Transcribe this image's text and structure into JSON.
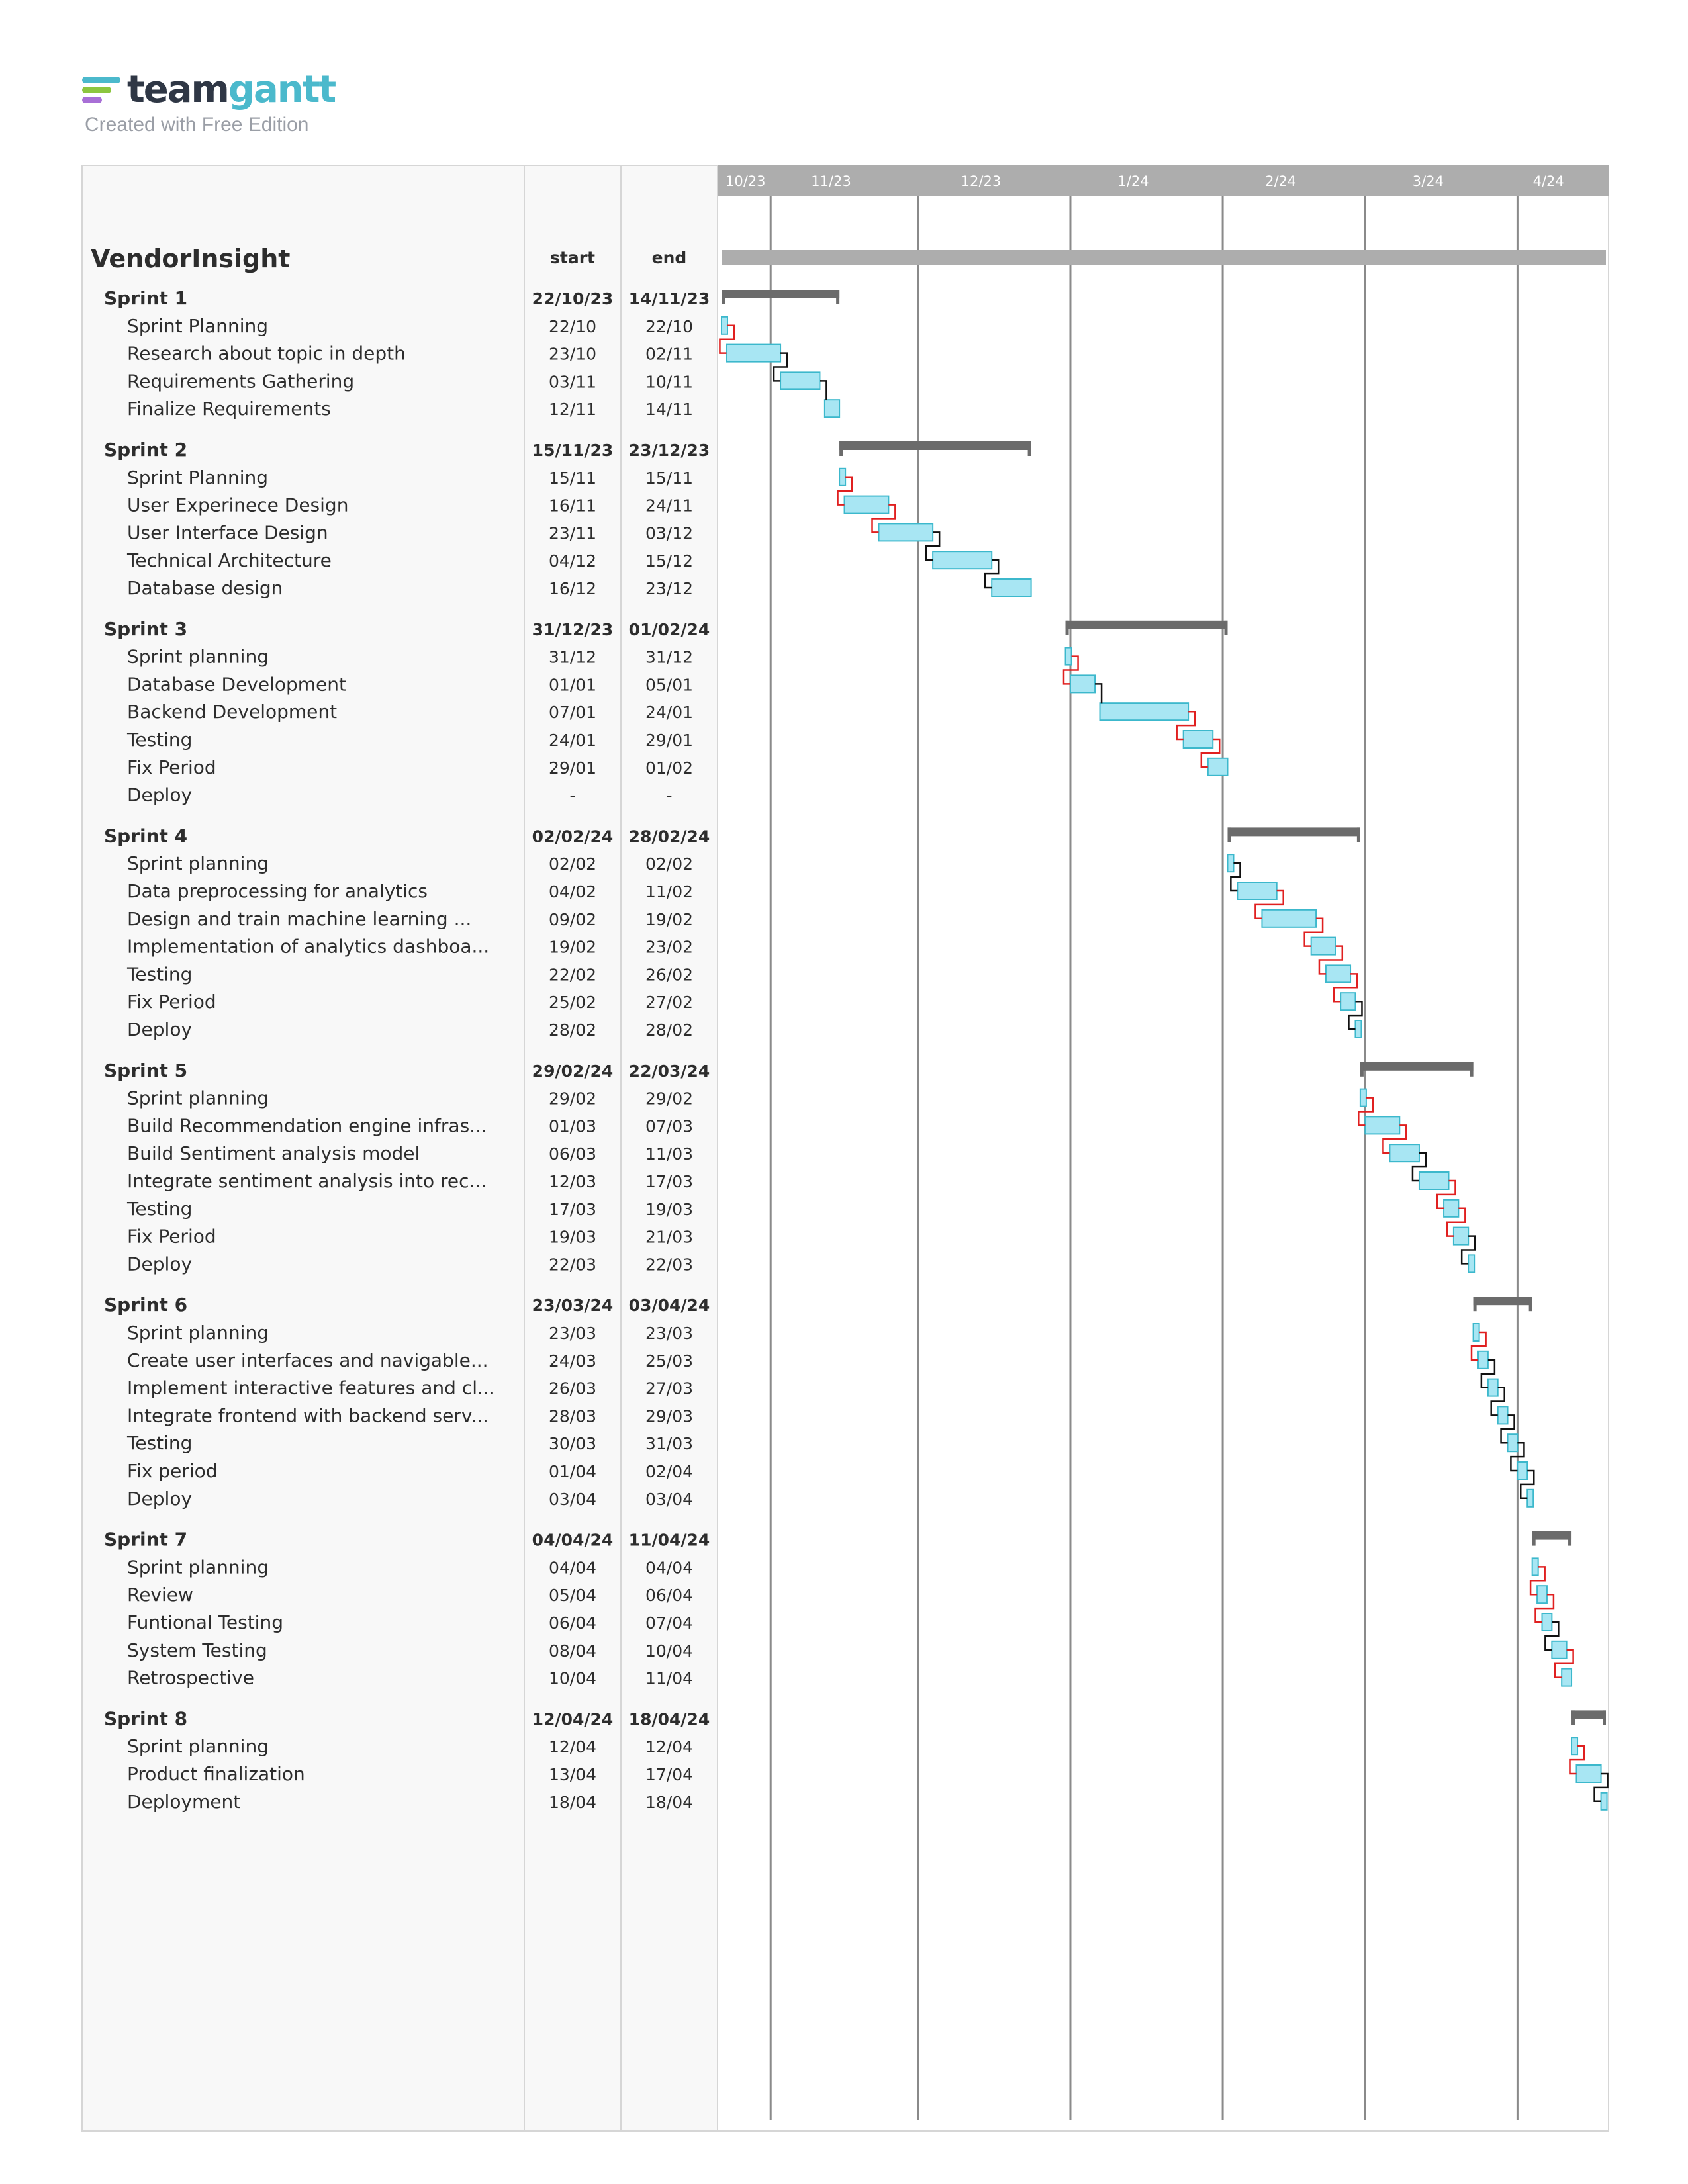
{
  "brand": {
    "name_part1": "team",
    "name_part2": "gantt",
    "subtitle": "Created with Free Edition",
    "mark_colors": [
      "#4bb9cc",
      "#8cc63f",
      "#a86fd6"
    ]
  },
  "colors": {
    "task_fill": "#a8e6f3",
    "task_stroke": "#3cb8cc",
    "group_bar": "#6b6b6b",
    "project_bar": "#adadad",
    "timeline_header": "#adadad",
    "dependency": "#111111",
    "dependency_conflict": "#e02020",
    "table_bg": "#f8f8f8"
  },
  "table": {
    "start_label": "start",
    "end_label": "end"
  },
  "chart_data": {
    "type": "gantt",
    "title": "VendorInsight",
    "x_range": [
      "2023-10-22",
      "2024-04-18"
    ],
    "months": [
      {
        "label": "10/23",
        "date": "2023-10-22"
      },
      {
        "label": "11/23",
        "date": "2023-11-01"
      },
      {
        "label": "12/23",
        "date": "2023-12-01"
      },
      {
        "label": "1/24",
        "date": "2024-01-01"
      },
      {
        "label": "2/24",
        "date": "2024-02-01"
      },
      {
        "label": "3/24",
        "date": "2024-03-01"
      },
      {
        "label": "4/24",
        "date": "2024-04-01"
      }
    ],
    "groups": [
      {
        "name": "Sprint 1",
        "start": "22/10/23",
        "end": "14/11/23",
        "s": "2023-10-22",
        "e": "2023-11-14",
        "tasks": [
          {
            "name": "Sprint Planning",
            "start": "22/10",
            "end": "22/10",
            "s": "2023-10-22",
            "e": "2023-10-22"
          },
          {
            "name": "Research about topic in depth",
            "start": "23/10",
            "end": "02/11",
            "s": "2023-10-23",
            "e": "2023-11-02"
          },
          {
            "name": "Requirements Gathering",
            "start": "03/11",
            "end": "10/11",
            "s": "2023-11-03",
            "e": "2023-11-10"
          },
          {
            "name": "Finalize Requirements",
            "start": "12/11",
            "end": "14/11",
            "s": "2023-11-12",
            "e": "2023-11-14"
          }
        ]
      },
      {
        "name": "Sprint 2",
        "start": "15/11/23",
        "end": "23/12/23",
        "s": "2023-11-15",
        "e": "2023-12-23",
        "tasks": [
          {
            "name": "Sprint Planning",
            "start": "15/11",
            "end": "15/11",
            "s": "2023-11-15",
            "e": "2023-11-15"
          },
          {
            "name": "User Experinece Design",
            "start": "16/11",
            "end": "24/11",
            "s": "2023-11-16",
            "e": "2023-11-24"
          },
          {
            "name": "User Interface Design",
            "start": "23/11",
            "end": "03/12",
            "s": "2023-11-23",
            "e": "2023-12-03"
          },
          {
            "name": "Technical Architecture",
            "start": "04/12",
            "end": "15/12",
            "s": "2023-12-04",
            "e": "2023-12-15"
          },
          {
            "name": "Database design",
            "start": "16/12",
            "end": "23/12",
            "s": "2023-12-16",
            "e": "2023-12-23"
          }
        ]
      },
      {
        "name": "Sprint 3",
        "start": "31/12/23",
        "end": "01/02/24",
        "s": "2023-12-31",
        "e": "2024-02-01",
        "tasks": [
          {
            "name": "Sprint planning",
            "start": "31/12",
            "end": "31/12",
            "s": "2023-12-31",
            "e": "2023-12-31"
          },
          {
            "name": "Database Development",
            "start": "01/01",
            "end": "05/01",
            "s": "2024-01-01",
            "e": "2024-01-05"
          },
          {
            "name": "Backend Development",
            "start": "07/01",
            "end": "24/01",
            "s": "2024-01-07",
            "e": "2024-01-24"
          },
          {
            "name": "Testing",
            "start": "24/01",
            "end": "29/01",
            "s": "2024-01-24",
            "e": "2024-01-29"
          },
          {
            "name": "Fix Period",
            "start": "29/01",
            "end": "01/02",
            "s": "2024-01-29",
            "e": "2024-02-01"
          },
          {
            "name": "Deploy",
            "start": "-",
            "end": "-",
            "s": null,
            "e": null
          }
        ]
      },
      {
        "name": "Sprint 4",
        "start": "02/02/24",
        "end": "28/02/24",
        "s": "2024-02-02",
        "e": "2024-02-28",
        "tasks": [
          {
            "name": "Sprint planning",
            "start": "02/02",
            "end": "02/02",
            "s": "2024-02-02",
            "e": "2024-02-02"
          },
          {
            "name": "Data preprocessing for analytics",
            "start": "04/02",
            "end": "11/02",
            "s": "2024-02-04",
            "e": "2024-02-11"
          },
          {
            "name": "Design and train machine learning ...",
            "start": "09/02",
            "end": "19/02",
            "s": "2024-02-09",
            "e": "2024-02-19"
          },
          {
            "name": "Implementation of analytics dashboa...",
            "start": "19/02",
            "end": "23/02",
            "s": "2024-02-19",
            "e": "2024-02-23"
          },
          {
            "name": "Testing",
            "start": "22/02",
            "end": "26/02",
            "s": "2024-02-22",
            "e": "2024-02-26"
          },
          {
            "name": "Fix Period",
            "start": "25/02",
            "end": "27/02",
            "s": "2024-02-25",
            "e": "2024-02-27"
          },
          {
            "name": "Deploy",
            "start": "28/02",
            "end": "28/02",
            "s": "2024-02-28",
            "e": "2024-02-28"
          }
        ]
      },
      {
        "name": "Sprint 5",
        "start": "29/02/24",
        "end": "22/03/24",
        "s": "2024-02-29",
        "e": "2024-03-22",
        "tasks": [
          {
            "name": "Sprint planning",
            "start": "29/02",
            "end": "29/02",
            "s": "2024-02-29",
            "e": "2024-02-29"
          },
          {
            "name": "Build Recommendation engine infras...",
            "start": "01/03",
            "end": "07/03",
            "s": "2024-03-01",
            "e": "2024-03-07"
          },
          {
            "name": "Build Sentiment analysis model",
            "start": "06/03",
            "end": "11/03",
            "s": "2024-03-06",
            "e": "2024-03-11"
          },
          {
            "name": "Integrate sentiment analysis into rec...",
            "start": "12/03",
            "end": "17/03",
            "s": "2024-03-12",
            "e": "2024-03-17"
          },
          {
            "name": "Testing",
            "start": "17/03",
            "end": "19/03",
            "s": "2024-03-17",
            "e": "2024-03-19"
          },
          {
            "name": "Fix Period",
            "start": "19/03",
            "end": "21/03",
            "s": "2024-03-19",
            "e": "2024-03-21"
          },
          {
            "name": "Deploy",
            "start": "22/03",
            "end": "22/03",
            "s": "2024-03-22",
            "e": "2024-03-22"
          }
        ]
      },
      {
        "name": "Sprint 6",
        "start": "23/03/24",
        "end": "03/04/24",
        "s": "2024-03-23",
        "e": "2024-04-03",
        "tasks": [
          {
            "name": "Sprint planning",
            "start": "23/03",
            "end": "23/03",
            "s": "2024-03-23",
            "e": "2024-03-23"
          },
          {
            "name": "Create user interfaces and navigable...",
            "start": "24/03",
            "end": "25/03",
            "s": "2024-03-24",
            "e": "2024-03-25"
          },
          {
            "name": "Implement interactive features and cl...",
            "start": "26/03",
            "end": "27/03",
            "s": "2024-03-26",
            "e": "2024-03-27"
          },
          {
            "name": "Integrate frontend with backend serv...",
            "start": "28/03",
            "end": "29/03",
            "s": "2024-03-28",
            "e": "2024-03-29"
          },
          {
            "name": "Testing",
            "start": "30/03",
            "end": "31/03",
            "s": "2024-03-30",
            "e": "2024-03-31"
          },
          {
            "name": "Fix period",
            "start": "01/04",
            "end": "02/04",
            "s": "2024-04-01",
            "e": "2024-04-02"
          },
          {
            "name": "Deploy",
            "start": "03/04",
            "end": "03/04",
            "s": "2024-04-03",
            "e": "2024-04-03"
          }
        ]
      },
      {
        "name": "Sprint 7",
        "start": "04/04/24",
        "end": "11/04/24",
        "s": "2024-04-04",
        "e": "2024-04-11",
        "tasks": [
          {
            "name": "Sprint planning",
            "start": "04/04",
            "end": "04/04",
            "s": "2024-04-04",
            "e": "2024-04-04"
          },
          {
            "name": "Review",
            "start": "05/04",
            "end": "06/04",
            "s": "2024-04-05",
            "e": "2024-04-06"
          },
          {
            "name": "Funtional Testing",
            "start": "06/04",
            "end": "07/04",
            "s": "2024-04-06",
            "e": "2024-04-07"
          },
          {
            "name": "System Testing",
            "start": "08/04",
            "end": "10/04",
            "s": "2024-04-08",
            "e": "2024-04-10"
          },
          {
            "name": "Retrospective",
            "start": "10/04",
            "end": "11/04",
            "s": "2024-04-10",
            "e": "2024-04-11"
          }
        ]
      },
      {
        "name": "Sprint 8",
        "start": "12/04/24",
        "end": "18/04/24",
        "s": "2024-04-12",
        "e": "2024-04-18",
        "tasks": [
          {
            "name": "Sprint planning",
            "start": "12/04",
            "end": "12/04",
            "s": "2024-04-12",
            "e": "2024-04-12"
          },
          {
            "name": "Product finalization",
            "start": "13/04",
            "end": "17/04",
            "s": "2024-04-13",
            "e": "2024-04-17"
          },
          {
            "name": "Deployment",
            "start": "18/04",
            "end": "18/04",
            "s": "2024-04-18",
            "e": "2024-04-18"
          }
        ]
      }
    ]
  }
}
